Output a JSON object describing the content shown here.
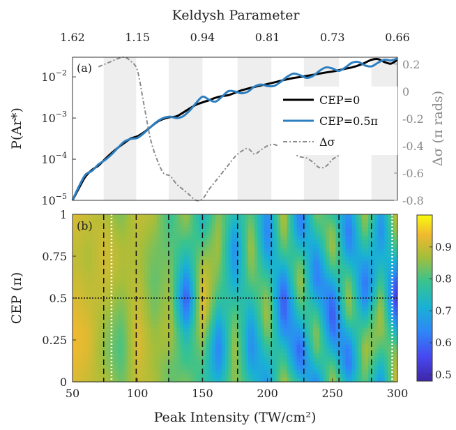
{
  "chart_data": [
    {
      "panel_label": "(a)",
      "type": "line",
      "top_axis": {
        "title": "Keldysh Parameter",
        "ticks": [
          "1.62",
          "1.15",
          "0.94",
          "0.81",
          "0.73",
          "0.66"
        ]
      },
      "ylabel_left": "P(Ar*)",
      "ylabel_right": "Δσ (π rads)",
      "y_scale": "log",
      "ylim": [
        1e-05,
        0.03
      ],
      "y_ticks": [
        {
          "value": 1e-05,
          "base": "10",
          "exp": "−5"
        },
        {
          "value": 0.0001,
          "base": "10",
          "exp": "−4"
        },
        {
          "value": 0.001,
          "base": "10",
          "exp": "−3"
        },
        {
          "value": 0.01,
          "base": "10",
          "exp": "−2"
        }
      ],
      "y2lim": [
        -0.8,
        0.25
      ],
      "y2_ticks": [
        "0.2",
        "0",
        "-0.2",
        "-0.4",
        "-0.6",
        "-0.8"
      ],
      "xlim": [
        50,
        300
      ],
      "shaded_bands": [
        [
          74,
          99
        ],
        [
          124,
          150
        ],
        [
          177,
          203
        ],
        [
          228,
          255
        ],
        [
          280,
          300
        ]
      ],
      "legend": {
        "position": "right",
        "entries": [
          {
            "label": "CEP=0",
            "color": "#000000",
            "style": "solid"
          },
          {
            "label": "CEP=0.5π",
            "color": "#2e7fc0",
            "style": "solid"
          },
          {
            "label": "Δσ",
            "color": "#8a8a8a",
            "style": "dash-dot"
          }
        ]
      },
      "series": [
        {
          "name": "CEP=0",
          "color": "#000000",
          "x": [
            50,
            55,
            60,
            65,
            70,
            75,
            80,
            85,
            90,
            95,
            100,
            105,
            110,
            115,
            120,
            125,
            130,
            135,
            140,
            145,
            150,
            155,
            160,
            165,
            170,
            175,
            180,
            185,
            190,
            195,
            200,
            205,
            210,
            215,
            220,
            225,
            230,
            235,
            240,
            245,
            250,
            255,
            260,
            265,
            270,
            275,
            280,
            285,
            290,
            295,
            300
          ],
          "y": [
            1e-05,
            2e-05,
            3.8e-05,
            5.5e-05,
            7e-05,
            0.0001,
            0.00014,
            0.00019,
            0.00025,
            0.00032,
            0.00036,
            0.00045,
            0.0006,
            0.0008,
            0.00095,
            0.00105,
            0.0011,
            0.00135,
            0.0017,
            0.0021,
            0.0024,
            0.0027,
            0.0031,
            0.0034,
            0.0036,
            0.0041,
            0.0047,
            0.0052,
            0.0057,
            0.0062,
            0.0067,
            0.0073,
            0.008,
            0.0087,
            0.0094,
            0.0099,
            0.0105,
            0.0112,
            0.012,
            0.0128,
            0.0135,
            0.0145,
            0.0158,
            0.017,
            0.019,
            0.022,
            0.026,
            0.027,
            0.023,
            0.021,
            0.026
          ]
        },
        {
          "name": "CEP=0.5π",
          "color": "#2e7fc0",
          "x": [
            50,
            55,
            60,
            65,
            70,
            75,
            80,
            85,
            90,
            95,
            100,
            105,
            110,
            115,
            120,
            125,
            130,
            135,
            140,
            145,
            150,
            155,
            160,
            165,
            170,
            175,
            180,
            185,
            190,
            195,
            200,
            205,
            210,
            215,
            220,
            225,
            230,
            235,
            240,
            245,
            250,
            255,
            260,
            265,
            270,
            275,
            280,
            285,
            290,
            295,
            300
          ],
          "y": [
            1e-05,
            2.2e-05,
            4.2e-05,
            5.2e-05,
            7.5e-05,
            9.5e-05,
            0.00013,
            0.00019,
            0.00027,
            0.00031,
            0.00033,
            0.00043,
            0.0006,
            0.00082,
            0.001,
            0.00108,
            0.001,
            0.0011,
            0.0015,
            0.0023,
            0.0033,
            0.0028,
            0.0025,
            0.0033,
            0.0045,
            0.0044,
            0.004,
            0.0044,
            0.0058,
            0.0065,
            0.006,
            0.006,
            0.0075,
            0.01,
            0.012,
            0.011,
            0.0095,
            0.0105,
            0.014,
            0.017,
            0.016,
            0.014,
            0.017,
            0.022,
            0.023,
            0.019,
            0.018,
            0.022,
            0.026,
            0.025,
            0.028
          ]
        },
        {
          "name": "Δσ",
          "axis": "right",
          "color": "#8a8a8a",
          "x": [
            70,
            75,
            80,
            85,
            90,
            95,
            100,
            105,
            110,
            115,
            120,
            125,
            130,
            135,
            140,
            145,
            150,
            155,
            160,
            165,
            170,
            175,
            180,
            185,
            190,
            195,
            200,
            205,
            210,
            215,
            220,
            225,
            230,
            235,
            240,
            245,
            250,
            255,
            260,
            265,
            270
          ],
          "y": [
            0.18,
            0.2,
            0.22,
            0.24,
            0.25,
            0.22,
            0.15,
            -0.1,
            -0.35,
            -0.5,
            -0.6,
            -0.62,
            -0.68,
            -0.72,
            -0.76,
            -0.8,
            -0.79,
            -0.72,
            -0.66,
            -0.6,
            -0.54,
            -0.48,
            -0.44,
            -0.42,
            -0.46,
            -0.43,
            -0.4,
            -0.39,
            -0.41,
            -0.44,
            -0.46,
            -0.48,
            -0.49,
            -0.52,
            -0.56,
            -0.55,
            -0.5,
            -0.47,
            -0.44,
            -0.42,
            -0.43
          ]
        }
      ]
    },
    {
      "panel_label": "(b)",
      "type": "heatmap",
      "xlabel": "Peak Intensity (TW/cm²)",
      "ylabel": "CEP (π)",
      "xlim": [
        50,
        300
      ],
      "ylim": [
        0,
        1
      ],
      "x_ticks": [
        "50",
        "100",
        "150",
        "200",
        "250",
        "300"
      ],
      "y_ticks": [
        "0",
        "0.25",
        "0.5",
        "0.75",
        "1"
      ],
      "colorbar": {
        "range": [
          0.48,
          1.0
        ],
        "ticks": [
          "0.5",
          "0.6",
          "0.7",
          "0.8",
          "0.9"
        ]
      },
      "dashed_vlines": [
        74,
        99,
        124,
        150,
        177,
        203,
        228,
        255,
        280
      ],
      "white_dotted_vlines": [
        80,
        296
      ],
      "hline_dotted": 0.5,
      "x": [
        50,
        62.5,
        75,
        87.5,
        100,
        112.5,
        125,
        137.5,
        150,
        162.5,
        175,
        187.5,
        200,
        212.5,
        225,
        237.5,
        250,
        262.5,
        275,
        287.5,
        300
      ],
      "y": [
        0,
        0.1,
        0.2,
        0.3,
        0.4,
        0.5,
        0.6,
        0.7,
        0.8,
        0.9,
        1
      ],
      "z": [
        [
          0.92,
          0.9,
          0.88,
          0.83,
          0.9,
          0.88,
          0.82,
          0.84,
          0.78,
          0.72,
          0.86,
          0.75,
          0.66,
          0.88,
          0.74,
          0.63,
          0.88,
          0.7,
          0.82,
          0.66,
          0.93
        ],
        [
          0.93,
          0.91,
          0.86,
          0.81,
          0.91,
          0.87,
          0.83,
          0.8,
          0.8,
          0.65,
          0.87,
          0.68,
          0.71,
          0.82,
          0.62,
          0.74,
          0.82,
          0.6,
          0.86,
          0.72,
          0.9
        ],
        [
          0.94,
          0.92,
          0.85,
          0.8,
          0.92,
          0.87,
          0.86,
          0.77,
          0.84,
          0.62,
          0.88,
          0.64,
          0.78,
          0.75,
          0.58,
          0.84,
          0.7,
          0.62,
          0.88,
          0.8,
          0.84
        ],
        [
          0.94,
          0.92,
          0.86,
          0.81,
          0.92,
          0.86,
          0.88,
          0.72,
          0.89,
          0.65,
          0.86,
          0.65,
          0.85,
          0.65,
          0.66,
          0.86,
          0.6,
          0.72,
          0.82,
          0.86,
          0.72
        ],
        [
          0.93,
          0.91,
          0.87,
          0.83,
          0.91,
          0.84,
          0.88,
          0.62,
          0.93,
          0.72,
          0.82,
          0.7,
          0.88,
          0.58,
          0.76,
          0.8,
          0.56,
          0.84,
          0.72,
          0.88,
          0.58
        ],
        [
          0.92,
          0.9,
          0.89,
          0.85,
          0.9,
          0.83,
          0.87,
          0.56,
          0.94,
          0.78,
          0.76,
          0.76,
          0.86,
          0.56,
          0.84,
          0.7,
          0.6,
          0.88,
          0.62,
          0.86,
          0.5
        ],
        [
          0.91,
          0.89,
          0.9,
          0.87,
          0.89,
          0.82,
          0.86,
          0.62,
          0.92,
          0.82,
          0.7,
          0.82,
          0.8,
          0.62,
          0.88,
          0.62,
          0.7,
          0.84,
          0.6,
          0.8,
          0.56
        ],
        [
          0.9,
          0.88,
          0.91,
          0.88,
          0.88,
          0.83,
          0.84,
          0.7,
          0.88,
          0.85,
          0.66,
          0.86,
          0.72,
          0.72,
          0.84,
          0.62,
          0.82,
          0.74,
          0.66,
          0.74,
          0.68
        ],
        [
          0.9,
          0.88,
          0.91,
          0.88,
          0.88,
          0.84,
          0.82,
          0.77,
          0.82,
          0.87,
          0.64,
          0.88,
          0.65,
          0.82,
          0.74,
          0.68,
          0.88,
          0.64,
          0.76,
          0.68,
          0.8
        ],
        [
          0.91,
          0.89,
          0.9,
          0.86,
          0.89,
          0.86,
          0.8,
          0.83,
          0.76,
          0.87,
          0.68,
          0.86,
          0.62,
          0.88,
          0.64,
          0.77,
          0.86,
          0.6,
          0.84,
          0.64,
          0.88
        ],
        [
          0.92,
          0.9,
          0.88,
          0.84,
          0.9,
          0.88,
          0.78,
          0.87,
          0.72,
          0.85,
          0.74,
          0.82,
          0.64,
          0.9,
          0.6,
          0.84,
          0.78,
          0.64,
          0.88,
          0.66,
          0.92
        ]
      ]
    }
  ]
}
